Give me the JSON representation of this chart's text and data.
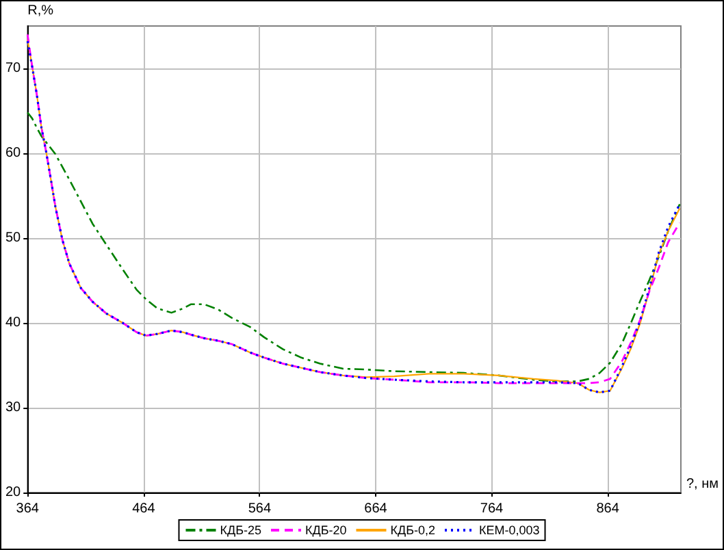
{
  "chart_data": {
    "type": "line",
    "xlabel": "?, нм",
    "ylabel": "R,%",
    "x": [
      364,
      368,
      372,
      376,
      380,
      384,
      388,
      394,
      400,
      410,
      420,
      432,
      446,
      458,
      466,
      476,
      488,
      498,
      505,
      516,
      528,
      540,
      556,
      568,
      584,
      600,
      616,
      636,
      656,
      680,
      710,
      740,
      770,
      800,
      820,
      838,
      848,
      857,
      866,
      876,
      884,
      892,
      900,
      908,
      916,
      926
    ],
    "series": [
      {
        "name": "КДБ-25",
        "color": "#008000",
        "line_style": "dashdot",
        "values": [
          64.8,
          64.1,
          63.0,
          62.0,
          61.3,
          60.6,
          59.9,
          58.4,
          56.9,
          54.3,
          51.7,
          49.2,
          46.3,
          43.9,
          42.8,
          41.7,
          41.2,
          41.7,
          42.2,
          42.2,
          41.6,
          40.6,
          39.5,
          38.3,
          36.9,
          35.9,
          35.2,
          34.6,
          34.5,
          34.3,
          34.2,
          34.1,
          33.8,
          33.3,
          33.1,
          33.1,
          33.4,
          34.1,
          35.3,
          37.5,
          40.0,
          42.6,
          45.1,
          47.8,
          50.8,
          54.0
        ]
      },
      {
        "name": "КДБ-20",
        "color": "#ff00ff",
        "line_style": "dashed",
        "values": [
          74.0,
          70.2,
          66.9,
          63.0,
          60.2,
          57.0,
          53.7,
          49.8,
          47.0,
          44.1,
          42.5,
          41.1,
          40.0,
          38.9,
          38.5,
          38.7,
          39.1,
          38.9,
          38.6,
          38.2,
          37.9,
          37.5,
          36.5,
          35.9,
          35.2,
          34.7,
          34.2,
          33.8,
          33.5,
          33.3,
          33.0,
          33.0,
          32.9,
          32.9,
          32.9,
          32.9,
          32.9,
          33.0,
          33.4,
          35.4,
          37.7,
          40.4,
          43.8,
          46.5,
          49.5,
          51.8
        ]
      },
      {
        "name": "КДБ-0,2",
        "color": "#ffa500",
        "line_style": "solid",
        "values": [
          73.4,
          70.2,
          66.9,
          63.0,
          60.2,
          57.0,
          53.7,
          49.8,
          47.0,
          44.1,
          42.5,
          41.1,
          40.0,
          38.9,
          38.5,
          38.7,
          39.1,
          38.9,
          38.6,
          38.2,
          37.9,
          37.5,
          36.5,
          35.9,
          35.2,
          34.7,
          34.2,
          33.8,
          33.6,
          33.7,
          34.0,
          34.0,
          33.8,
          33.4,
          33.2,
          32.9,
          32.1,
          31.8,
          32.0,
          34.6,
          37.0,
          40.0,
          43.9,
          48.1,
          50.8,
          53.5
        ]
      },
      {
        "name": "КЕМ-0,003",
        "color": "#0000ff",
        "line_style": "dotted",
        "values": [
          73.2,
          70.2,
          66.9,
          63.0,
          60.2,
          57.0,
          53.7,
          49.8,
          47.0,
          44.1,
          42.5,
          41.1,
          40.0,
          38.9,
          38.5,
          38.7,
          39.1,
          38.9,
          38.6,
          38.2,
          37.9,
          37.5,
          36.5,
          35.9,
          35.2,
          34.7,
          34.2,
          33.8,
          33.5,
          33.3,
          33.1,
          33.0,
          33.0,
          33.0,
          33.0,
          32.9,
          32.1,
          31.8,
          32.0,
          34.8,
          37.3,
          40.3,
          44.2,
          48.3,
          51.3,
          54.0
        ]
      }
    ],
    "xlim": [
      364,
      927
    ],
    "xticks": [
      364,
      464,
      564,
      664,
      764,
      864
    ],
    "ylim": [
      20,
      75
    ],
    "yticks": [
      20,
      30,
      40,
      50,
      60,
      70
    ],
    "grid": true,
    "legend": "bottom",
    "marker": "none"
  }
}
